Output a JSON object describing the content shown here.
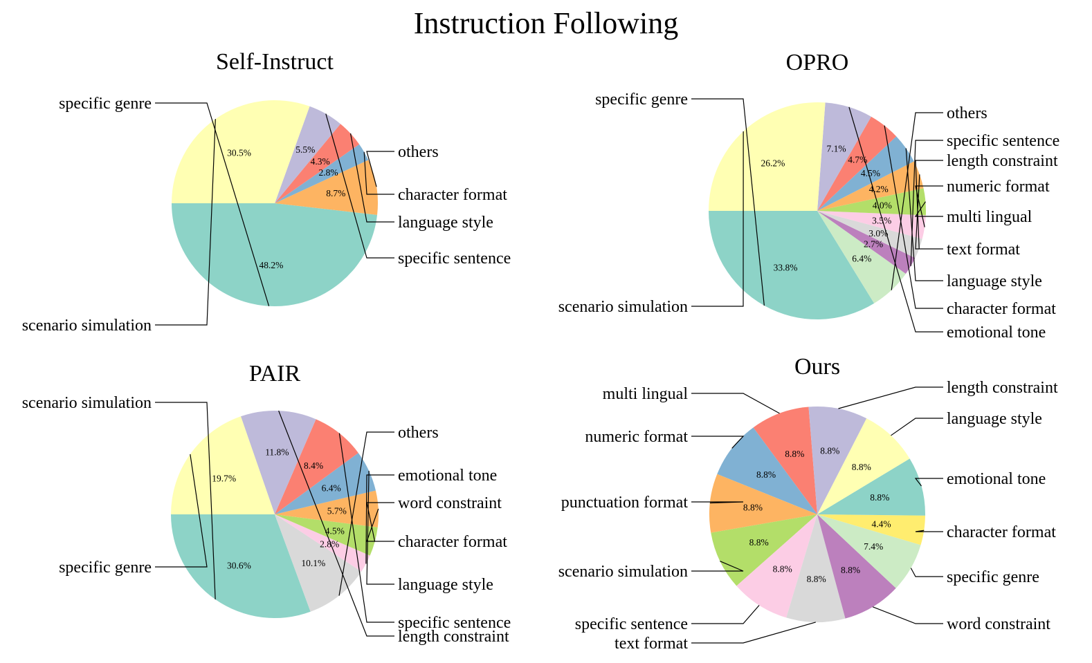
{
  "figure_title": "Instruction Following",
  "chart_data": [
    {
      "type": "pie",
      "title": "Self-Instruct",
      "labels": [
        "specific genre",
        "others",
        "character format",
        "language style",
        "specific sentence",
        "scenario simulation"
      ],
      "values": [
        48.2,
        8.7,
        2.8,
        4.3,
        5.5,
        30.5
      ],
      "value_labels": [
        "48.2%",
        "8.7%",
        "2.8%",
        "4.3%",
        "5.5%",
        "30.5%"
      ],
      "colors": [
        "#8dd3c7",
        "#fdb462",
        "#80b1d3",
        "#fb8072",
        "#bebada",
        "#ffffb3"
      ],
      "start_angle_deg": 180,
      "direction": "counterclockwise"
    },
    {
      "type": "pie",
      "title": "OPRO",
      "labels": [
        "specific genre",
        "others",
        "specific sentence",
        "length constraint",
        "numeric format",
        "multi lingual",
        "text format",
        "language style",
        "character format",
        "emotional tone",
        "scenario simulation"
      ],
      "values": [
        33.8,
        6.4,
        2.7,
        3.0,
        3.5,
        4.0,
        4.2,
        4.5,
        4.7,
        7.1,
        26.2
      ],
      "value_labels": [
        "33.8%",
        "6.4%",
        "2.7%",
        "3.0%",
        "3.5%",
        "4.0%",
        "4.2%",
        "4.5%",
        "4.7%",
        "7.1%",
        "26.2%"
      ],
      "colors": [
        "#8dd3c7",
        "#ccebc5",
        "#bc80bd",
        "#d9d9d9",
        "#fccde5",
        "#b3de69",
        "#fdb462",
        "#80b1d3",
        "#fb8072",
        "#bebada",
        "#ffffb3"
      ],
      "start_angle_deg": 180,
      "direction": "counterclockwise"
    },
    {
      "type": "pie",
      "title": "PAIR",
      "labels": [
        "scenario simulation",
        "others",
        "emotional tone",
        "word constraint",
        "character format",
        "language style",
        "specific sentence",
        "length constraint",
        "specific genre"
      ],
      "values": [
        30.6,
        10.1,
        2.8,
        4.5,
        5.7,
        6.4,
        8.4,
        11.8,
        19.7
      ],
      "value_labels": [
        "30.6%",
        "10.1%",
        "2.8%",
        "4.5%",
        "5.7%",
        "6.4%",
        "8.4%",
        "11.8%",
        "19.7%"
      ],
      "colors": [
        "#8dd3c7",
        "#d9d9d9",
        "#fccde5",
        "#b3de69",
        "#fdb462",
        "#80b1d3",
        "#fb8072",
        "#bebada",
        "#ffffb3"
      ],
      "start_angle_deg": 180,
      "direction": "counterclockwise"
    },
    {
      "type": "pie",
      "title": "Ours",
      "labels": [
        "multi lingual",
        "numeric format",
        "punctuation format",
        "scenario simulation",
        "specific sentence",
        "text format",
        "word constraint",
        "specific genre",
        "character format",
        "emotional tone",
        "language style",
        "length constraint"
      ],
      "values": [
        8.8,
        8.8,
        8.8,
        8.8,
        8.8,
        8.8,
        8.8,
        7.4,
        4.4,
        8.8,
        8.8,
        8.8
      ],
      "value_labels": [
        "8.8%",
        "8.8%",
        "8.8%",
        "8.8%",
        "8.8%",
        "8.8%",
        "8.8%",
        "7.4%",
        "4.4%",
        "8.8%",
        "8.8%",
        "8.8%"
      ],
      "colors": [
        "#fb8072",
        "#80b1d3",
        "#fdb462",
        "#b3de69",
        "#fccde5",
        "#d9d9d9",
        "#bc80bd",
        "#ccebc5",
        "#ffed6f",
        "#8dd3c7",
        "#ffffb3",
        "#bebada"
      ],
      "start_angle_deg": 94.6,
      "direction": "counterclockwise"
    }
  ]
}
